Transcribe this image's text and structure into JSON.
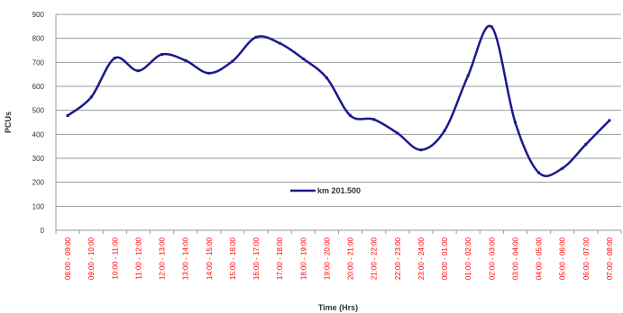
{
  "chart_data": {
    "type": "line",
    "ylabel": "PCUs",
    "xlabel": "Time (Hrs)",
    "ylim": [
      0,
      900
    ],
    "yticks": [
      0,
      100,
      200,
      300,
      400,
      500,
      600,
      700,
      800,
      900
    ],
    "grid": "horizontal",
    "legend_position": "center",
    "categories": [
      "08:00 - 09:00",
      "09:00 - 10:00",
      "10:00 - 11:00",
      "11:00 - 12:00",
      "12:00 - 13:00",
      "13:00 - 14:00",
      "14:00 - 15:00",
      "15:00 - 16:00",
      "16:00 - 17:00",
      "17:00 - 18:00",
      "18:00 - 19:00",
      "19:00 - 20:00",
      "20:00 - 21:00",
      "21:00 - 22:00",
      "22:00 - 23:00",
      "23:00 - 24:00",
      "00:00 - 01:00",
      "01:00 - 02:00",
      "02:00 - 03:00",
      "03:00 - 04:00",
      "04:00 - 05:00",
      "05:00 - 06:00",
      "06:00 - 07:00",
      "07:00 - 08:00"
    ],
    "series": [
      {
        "name": "km 201.500",
        "color": "#1a1a8c",
        "values": [
          478,
          555,
          718,
          665,
          733,
          708,
          655,
          705,
          805,
          780,
          715,
          635,
          478,
          462,
          405,
          335,
          415,
          645,
          848,
          450,
          240,
          258,
          358,
          458
        ]
      }
    ],
    "colors": {
      "axis_tick_labels": "#ff0000",
      "gridline": "#999999",
      "line": "#1a1a8c"
    }
  }
}
